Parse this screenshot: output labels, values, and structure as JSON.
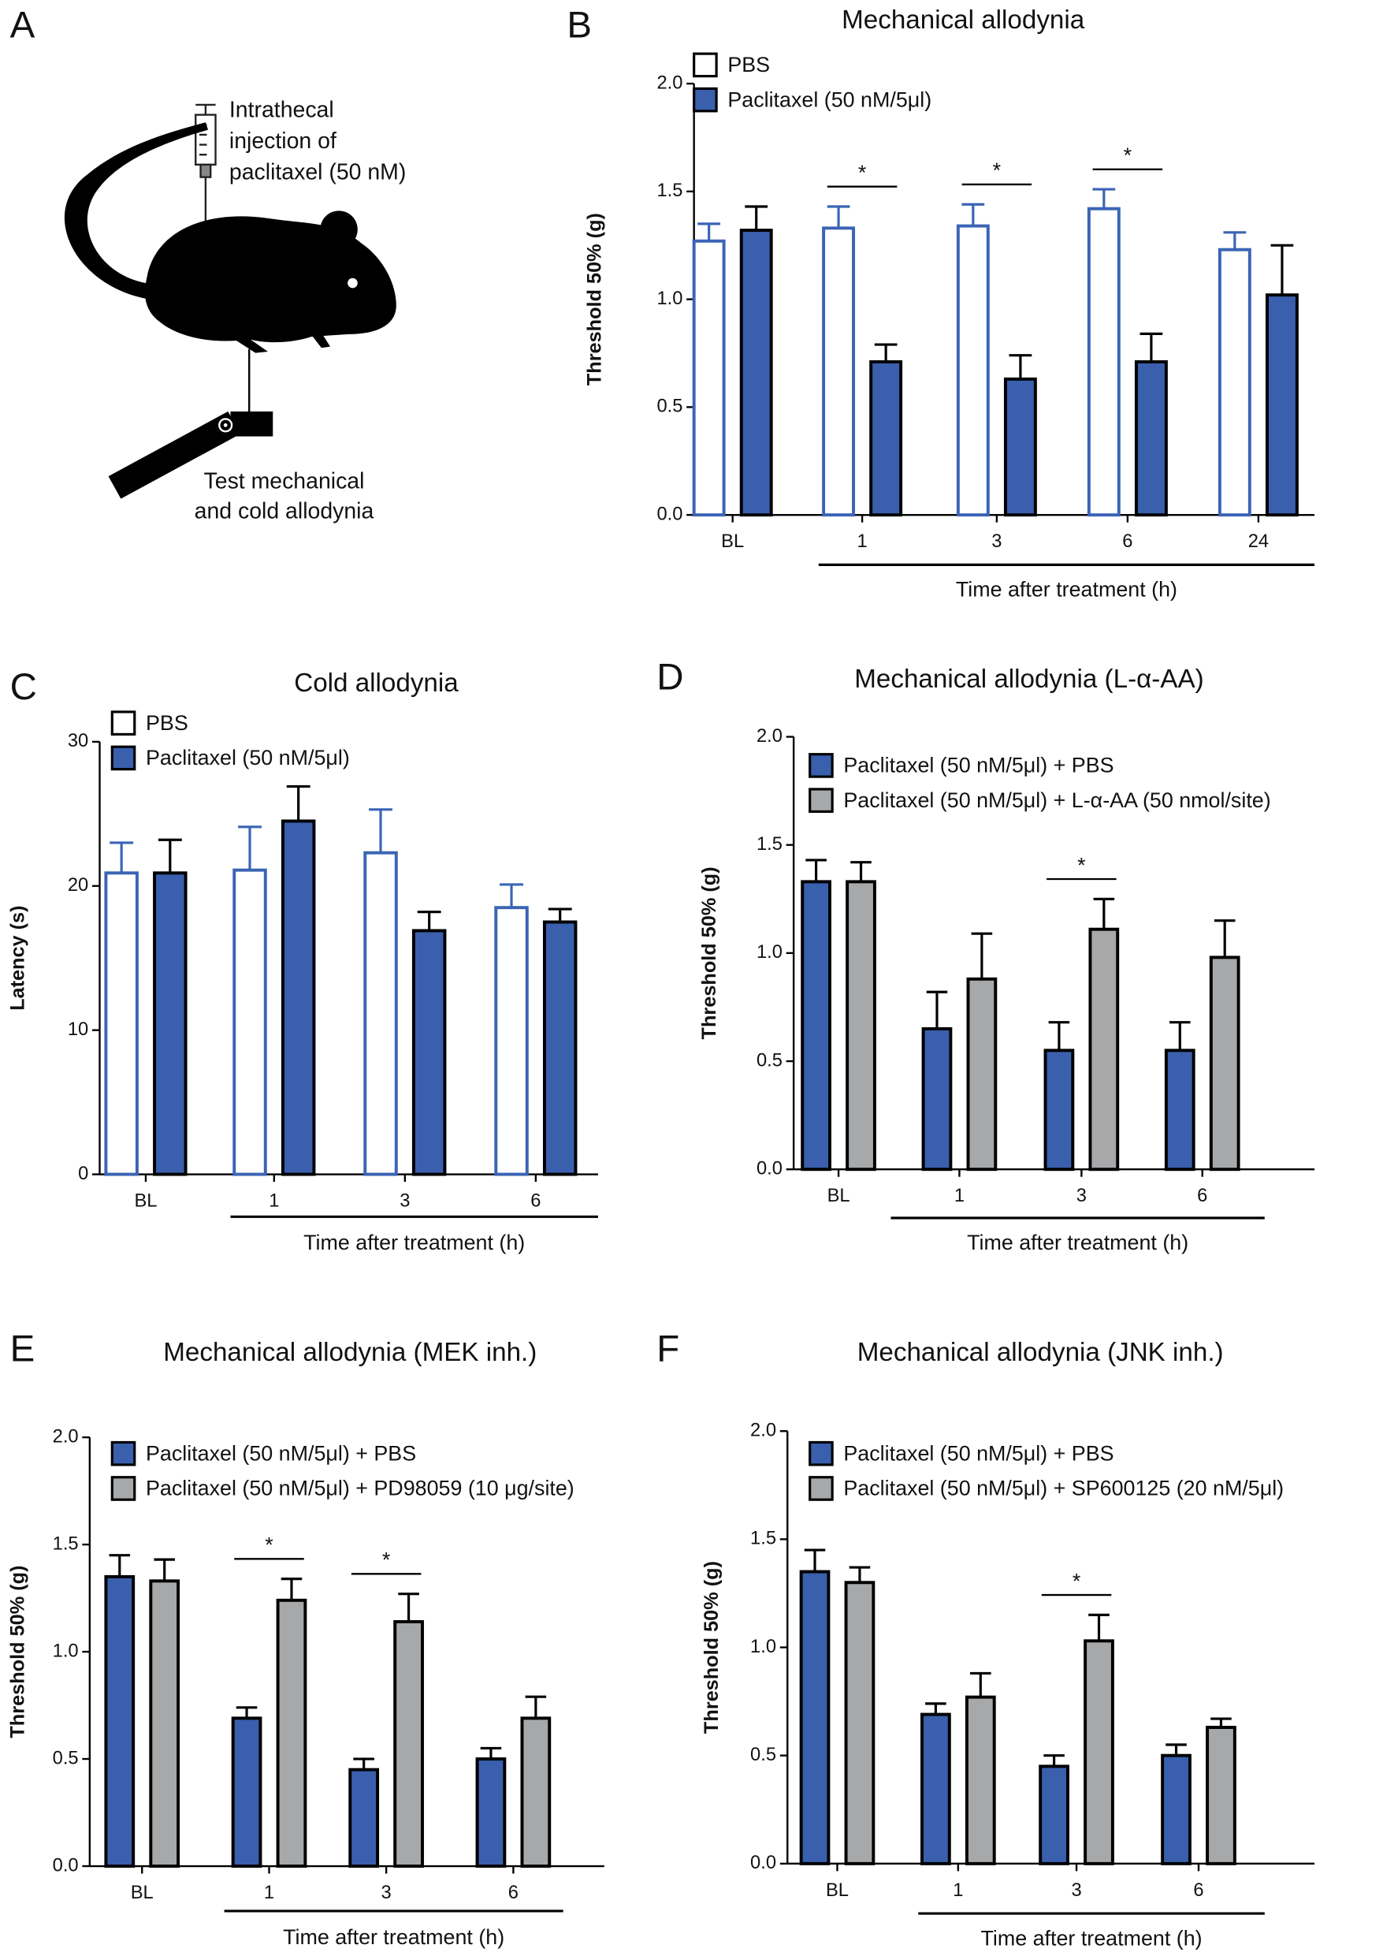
{
  "panel_a": {
    "label": "A",
    "injection_text": [
      "Intrathecal",
      "injection of",
      "paclitaxel (50 nM)"
    ],
    "test_text": [
      "Test mechanical",
      "and cold allodynia"
    ]
  },
  "chart_data": [
    {
      "type": "bar",
      "panel": "B",
      "title": "Mechanical allodynia",
      "ylabel": "Threshold 50% (g)",
      "xlabel": "Time after treatment (h)",
      "categories": [
        "BL",
        "1",
        "3",
        "6",
        "24"
      ],
      "series": [
        {
          "name": "PBS",
          "fill": "#ffffff",
          "stroke": "#3b64b5",
          "values": [
            1.27,
            1.33,
            1.34,
            1.42,
            1.23
          ],
          "errors": [
            0.08,
            0.1,
            0.1,
            0.09,
            0.08
          ]
        },
        {
          "name": "Paclitaxel (50 nM/5μl)",
          "fill": "#3a5fad",
          "stroke": "#000000",
          "values": [
            1.32,
            0.71,
            0.63,
            0.71,
            1.02
          ],
          "errors": [
            0.11,
            0.08,
            0.11,
            0.13,
            0.23
          ]
        }
      ],
      "significance": [
        null,
        "*",
        "*",
        "*",
        null
      ],
      "ylim": [
        0,
        2
      ],
      "yticks": [
        {
          "value": 0,
          "label": "0.0"
        },
        {
          "value": 0.5,
          "label": "0.5"
        },
        {
          "value": 1,
          "label": "1.0"
        },
        {
          "value": 1.5,
          "label": "1.5"
        },
        {
          "value": 2,
          "label": "2.0"
        }
      ]
    },
    {
      "type": "bar",
      "panel": "C",
      "title": "Cold allodynia",
      "ylabel": "Latency (s)",
      "xlabel": "Time after treatment (h)",
      "categories": [
        "BL",
        "1",
        "3",
        "6"
      ],
      "series": [
        {
          "name": "PBS",
          "fill": "#ffffff",
          "stroke": "#3b64b5",
          "values": [
            20.9,
            21.1,
            22.3,
            18.5
          ],
          "errors": [
            2.1,
            3,
            3,
            1.6
          ]
        },
        {
          "name": "Paclitaxel (50 nM/5μl)",
          "fill": "#3a5fad",
          "stroke": "#000000",
          "values": [
            20.9,
            24.5,
            16.9,
            17.5
          ],
          "errors": [
            2.3,
            2.4,
            1.3,
            0.9
          ]
        }
      ],
      "significance": [
        null,
        null,
        null,
        null
      ],
      "ylim": [
        0,
        30
      ],
      "yticks": [
        0,
        10,
        20,
        30
      ]
    },
    {
      "type": "bar",
      "panel": "D",
      "title": "Mechanical allodynia (L-α-AA)",
      "ylabel": "Threshold 50% (g)",
      "xlabel": "Time after treatment (h)",
      "categories": [
        "BL",
        "1",
        "3",
        "6"
      ],
      "series": [
        {
          "name": "Paclitaxel (50 nM/5μl) + PBS",
          "fill": "#3a5fad",
          "stroke": "#000000",
          "values": [
            1.33,
            0.65,
            0.55,
            0.55
          ],
          "errors": [
            0.1,
            0.17,
            0.13,
            0.13
          ]
        },
        {
          "name": "Paclitaxel (50 nM/5μl) + L-α-AA (50 nmol/site)",
          "fill": "#a7a8aa",
          "stroke": "#000000",
          "values": [
            1.33,
            0.88,
            1.11,
            0.98
          ],
          "errors": [
            0.09,
            0.21,
            0.14,
            0.17
          ]
        }
      ],
      "significance": [
        null,
        null,
        "*",
        null
      ],
      "ylim": [
        0,
        2
      ],
      "yticks": [
        {
          "value": 0,
          "label": "0.0"
        },
        {
          "value": 0.5,
          "label": "0.5"
        },
        {
          "value": 1,
          "label": "1.0"
        },
        {
          "value": 1.5,
          "label": "1.5"
        },
        {
          "value": 2,
          "label": "2.0"
        }
      ]
    },
    {
      "type": "bar",
      "panel": "E",
      "title": "Mechanical allodynia (MEK inh.)",
      "ylabel": "Threshold 50% (g)",
      "xlabel": "Time after treatment (h)",
      "categories": [
        "BL",
        "1",
        "3",
        "6"
      ],
      "series": [
        {
          "name": "Paclitaxel (50 nM/5μl) + PBS",
          "fill": "#3a5fad",
          "stroke": "#000000",
          "values": [
            1.35,
            0.69,
            0.45,
            0.5
          ],
          "errors": [
            0.1,
            0.05,
            0.05,
            0.05
          ]
        },
        {
          "name": "Paclitaxel (50 nM/5μl) + PD98059 (10 μg/site)",
          "fill": "#a7a8aa",
          "stroke": "#000000",
          "values": [
            1.33,
            1.24,
            1.14,
            0.69
          ],
          "errors": [
            0.1,
            0.1,
            0.13,
            0.1
          ]
        }
      ],
      "significance": [
        null,
        "*",
        "*",
        null
      ],
      "ylim": [
        0,
        2
      ],
      "yticks": [
        {
          "value": 0,
          "label": "0.0"
        },
        {
          "value": 0.5,
          "label": "0.5"
        },
        {
          "value": 1,
          "label": "1.0"
        },
        {
          "value": 1.5,
          "label": "1.5"
        },
        {
          "value": 2,
          "label": "2.0"
        }
      ]
    },
    {
      "type": "bar",
      "panel": "F",
      "title": "Mechanical allodynia (JNK inh.)",
      "ylabel": "Threshold 50% (g)",
      "xlabel": "Time after treatment (h)",
      "categories": [
        "BL",
        "1",
        "3",
        "6"
      ],
      "series": [
        {
          "name": "Paclitaxel (50 nM/5μl) + PBS",
          "fill": "#3a5fad",
          "stroke": "#000000",
          "values": [
            1.35,
            0.69,
            0.45,
            0.5
          ],
          "errors": [
            0.1,
            0.05,
            0.05,
            0.05
          ]
        },
        {
          "name": "Paclitaxel (50 nM/5μl) + SP600125 (20 nM/5μl)",
          "fill": "#a7a8aa",
          "stroke": "#000000",
          "values": [
            1.3,
            0.77,
            1.03,
            0.63
          ],
          "errors": [
            0.07,
            0.11,
            0.12,
            0.04
          ]
        }
      ],
      "significance": [
        null,
        null,
        "*",
        null
      ],
      "ylim": [
        0,
        2
      ],
      "yticks": [
        {
          "value": 0,
          "label": "0.0"
        },
        {
          "value": 0.5,
          "label": "0.5"
        },
        {
          "value": 1,
          "label": "1.0"
        },
        {
          "value": 1.5,
          "label": "1.5"
        },
        {
          "value": 2,
          "label": "2.0"
        }
      ]
    }
  ]
}
